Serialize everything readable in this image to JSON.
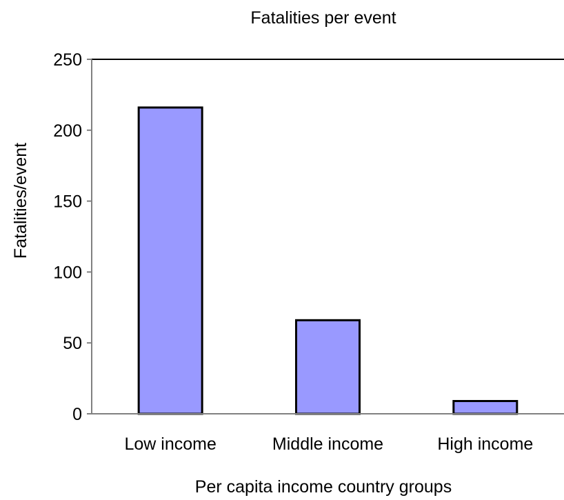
{
  "chart_data": {
    "type": "bar",
    "title": "Fatalities per event",
    "xlabel": "Per capita income country groups",
    "ylabel": "Fatalities/event",
    "categories": [
      "Low income",
      "Middle income",
      "High income"
    ],
    "values": [
      216,
      66,
      9
    ],
    "ylim": [
      0,
      250
    ],
    "yticks": [
      0,
      50,
      100,
      150,
      200,
      250
    ],
    "grid": false,
    "legend": "none",
    "bar_color": "#9999ff",
    "bar_edge_color": "#000000",
    "axis_color": "#808080"
  }
}
